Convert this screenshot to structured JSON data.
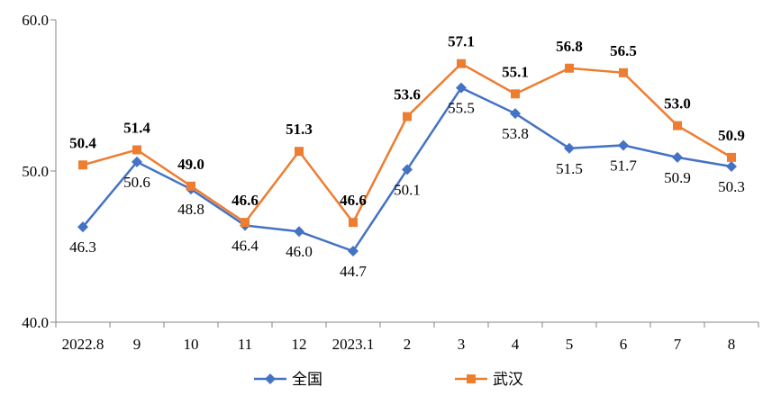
{
  "chart_data": {
    "type": "line",
    "categories": [
      "2022.8",
      "9",
      "10",
      "11",
      "12",
      "2023.1",
      "2",
      "3",
      "4",
      "5",
      "6",
      "7",
      "8"
    ],
    "ylim": [
      40.0,
      60.0
    ],
    "yticks": [
      "40.0",
      "50.0",
      "60.0"
    ],
    "grid": false,
    "legend_position": "bottom",
    "series": [
      {
        "name": "全国",
        "color": "#4472C4",
        "marker": "diamond",
        "label_style": "normal",
        "values": [
          46.3,
          50.6,
          48.8,
          46.4,
          46.0,
          44.7,
          50.1,
          55.5,
          53.8,
          51.5,
          51.7,
          50.9,
          50.3
        ],
        "labels": [
          "46.3",
          "50.6",
          "48.8",
          "46.4",
          "46.0",
          "44.7",
          "50.1",
          "55.5",
          "53.8",
          "51.5",
          "51.7",
          "50.9",
          "50.3"
        ]
      },
      {
        "name": "武汉",
        "color": "#ED7D31",
        "marker": "square",
        "label_style": "bold",
        "values": [
          50.4,
          51.4,
          49.0,
          46.6,
          51.3,
          46.6,
          53.6,
          57.1,
          55.1,
          56.8,
          56.5,
          53.0,
          50.9
        ],
        "labels": [
          "50.4",
          "51.4",
          "49.0",
          "46.6",
          "51.3",
          "46.6",
          "53.6",
          "57.1",
          "55.1",
          "56.8",
          "56.5",
          "53.0",
          "50.9"
        ]
      }
    ]
  }
}
